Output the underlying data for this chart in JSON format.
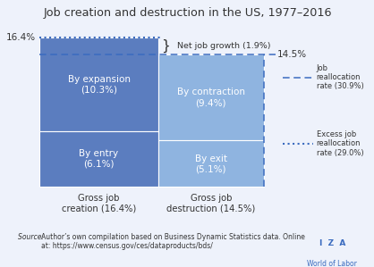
{
  "title": "Job creation and destruction in the US, 1977–2016",
  "gross_job_creation": 16.4,
  "gross_job_destruction": 14.5,
  "net_job_growth": 1.9,
  "job_reallocation_rate": 30.9,
  "excess_job_reallocation_rate": 29.0,
  "by_expansion": 10.3,
  "by_contraction": 9.4,
  "by_entry": 6.1,
  "by_exit": 5.1,
  "color_dark_blue": "#5b7dbf",
  "color_light_blue": "#8fb4e0",
  "color_border": "#3a6bbf",
  "source_text_italic": "Source: ",
  "source_text_normal": "Author’s own compilation based on Business Dynamic Statistics data. Online\nat: https://www.census.gov/ces/dataproducts/bds/",
  "iza_text": "I  Z  A",
  "world_of_labor_text": "World of Labor",
  "background_color": "#eef2fb",
  "outer_border_color": "#3a6bbf",
  "text_color": "#333333"
}
